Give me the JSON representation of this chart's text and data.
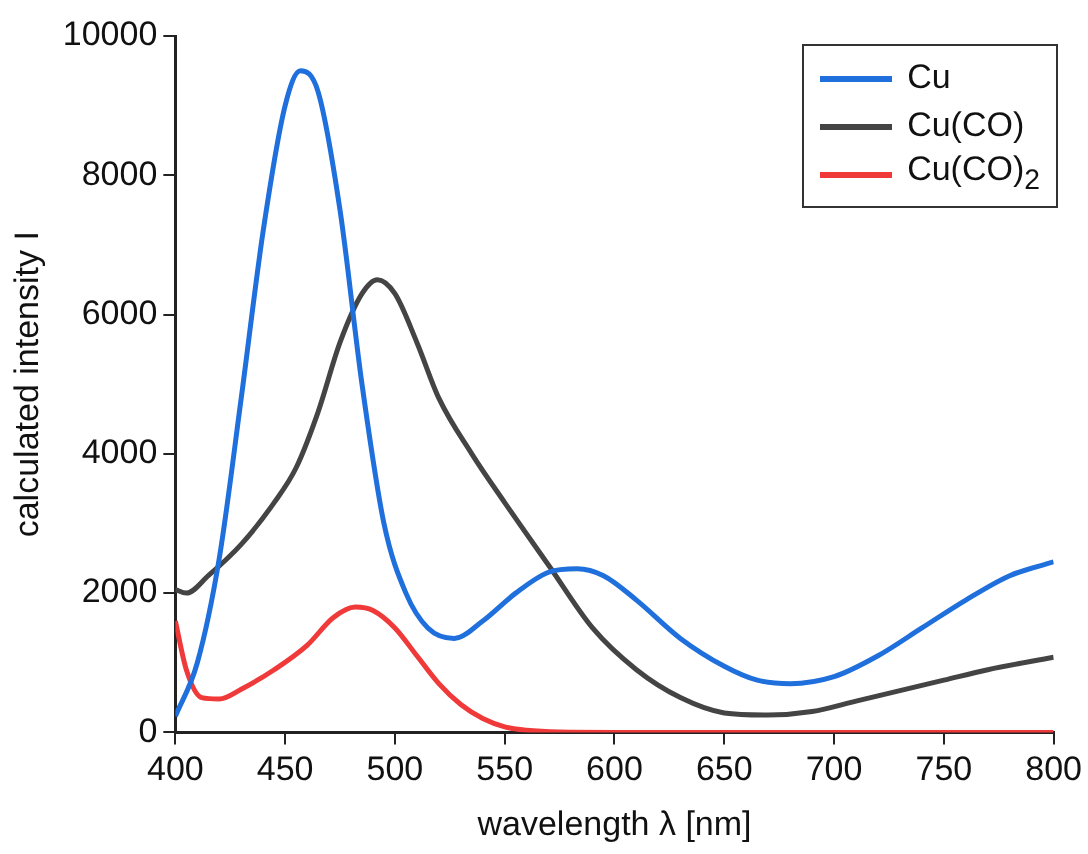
{
  "chart_data": {
    "type": "line",
    "xlabel": "wavelength λ [nm]",
    "ylabel": "calculated intensity I",
    "xlim": [
      400,
      800
    ],
    "xticks": [
      400,
      450,
      500,
      550,
      600,
      650,
      700,
      750,
      800
    ],
    "ylim": [
      0,
      10000
    ],
    "yticks": [
      0,
      2000,
      4000,
      6000,
      8000,
      10000
    ],
    "grid": false,
    "legend": "top right",
    "marker": "none",
    "line_style": "solid",
    "series": [
      {
        "name": "Cu",
        "color": "#1f6fdc",
        "x": [
          400,
          410,
          420,
          430,
          440,
          450,
          457,
          465,
          475,
          485,
          495,
          505,
          515,
          527,
          540,
          555,
          570,
          583,
          595,
          610,
          630,
          650,
          665,
          680,
          700,
          720,
          740,
          760,
          780,
          800
        ],
        "values": [
          230,
          1000,
          2500,
          4800,
          7200,
          9000,
          9500,
          9200,
          7500,
          5000,
          3000,
          2000,
          1500,
          1350,
          1600,
          2000,
          2300,
          2350,
          2250,
          1900,
          1350,
          950,
          750,
          700,
          800,
          1100,
          1500,
          1900,
          2250,
          2450
        ]
      },
      {
        "name": "Cu(CO)",
        "color": "#444444",
        "x": [
          400,
          405,
          415,
          430,
          445,
          455,
          465,
          475,
          485,
          492,
          500,
          510,
          520,
          535,
          550,
          570,
          590,
          610,
          630,
          650,
          670,
          690,
          710,
          730,
          750,
          770,
          800
        ],
        "values": [
          2050,
          2000,
          2250,
          2700,
          3300,
          3800,
          4600,
          5600,
          6300,
          6500,
          6300,
          5600,
          4800,
          4000,
          3300,
          2400,
          1500,
          900,
          500,
          280,
          250,
          300,
          450,
          600,
          750,
          900,
          1080
        ]
      },
      {
        "name": "Cu(CO)$_{2}$",
        "color": "#f03a3a",
        "x": [
          400,
          405,
          412,
          420,
          430,
          445,
          460,
          472,
          482,
          490,
          500,
          510,
          520,
          530,
          540,
          550,
          560,
          575,
          600,
          700,
          800
        ],
        "values": [
          1600,
          900,
          500,
          480,
          620,
          900,
          1250,
          1650,
          1800,
          1750,
          1500,
          1100,
          700,
          400,
          200,
          80,
          30,
          5,
          0,
          0,
          0
        ]
      }
    ]
  }
}
